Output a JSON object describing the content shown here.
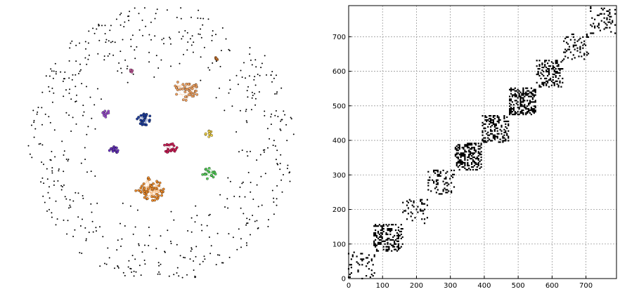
{
  "chart_data": [
    {
      "type": "scatter",
      "subtype": "network-graph",
      "title": "",
      "axes_visible": false,
      "description_of_marks": "Force-directed layout: isolated nodes scattered on a ring, with 10 colored node clusters near the center",
      "ring_dot_color": "#000000",
      "clusters": [
        {
          "color": "#f5a35f",
          "approx_nodes": 40
        },
        {
          "color": "#f08c2b",
          "approx_nodes": 55
        },
        {
          "color": "#1f3f9f",
          "approx_nodes": 25
        },
        {
          "color": "#d01c56",
          "approx_nodes": 20
        },
        {
          "color": "#6a33c2",
          "approx_nodes": 18
        },
        {
          "color": "#55d15a",
          "approx_nodes": 18
        },
        {
          "color": "#f2d34a",
          "approx_nodes": 10
        },
        {
          "color": "#9c4fd0",
          "approx_nodes": 10
        },
        {
          "color": "#c25a9a",
          "approx_nodes": 5
        },
        {
          "color": "#c8742e",
          "approx_nodes": 5
        }
      ]
    },
    {
      "type": "scatter",
      "subtype": "adjacency-matrix",
      "title": "",
      "xlabel": "",
      "ylabel": "",
      "xlim": [
        0,
        790
      ],
      "ylim": [
        0,
        790
      ],
      "xticks": [
        0,
        100,
        200,
        300,
        400,
        500,
        600,
        700
      ],
      "yticks": [
        0,
        100,
        200,
        300,
        400,
        500,
        600,
        700
      ],
      "grid": true,
      "marker_color": "#000000",
      "blocks": [
        {
          "x": [
            0,
            80
          ],
          "y": [
            0,
            80
          ],
          "density": 0.1
        },
        {
          "x": [
            75,
            160
          ],
          "y": [
            80,
            160
          ],
          "density": 0.35
        },
        {
          "x": [
            160,
            235
          ],
          "y": [
            160,
            235
          ],
          "density": 0.12
        },
        {
          "x": [
            235,
            315
          ],
          "y": [
            245,
            315
          ],
          "density": 0.18
        },
        {
          "x": [
            315,
            395
          ],
          "y": [
            315,
            395
          ],
          "density": 0.45
        },
        {
          "x": [
            395,
            475
          ],
          "y": [
            395,
            475
          ],
          "density": 0.3
        },
        {
          "x": [
            475,
            555
          ],
          "y": [
            475,
            555
          ],
          "density": 0.4
        },
        {
          "x": [
            555,
            635
          ],
          "y": [
            555,
            635
          ],
          "density": 0.32
        },
        {
          "x": [
            635,
            710
          ],
          "y": [
            635,
            710
          ],
          "density": 0.15
        },
        {
          "x": [
            710,
            790
          ],
          "y": [
            710,
            790
          ],
          "density": 0.12
        }
      ]
    }
  ]
}
